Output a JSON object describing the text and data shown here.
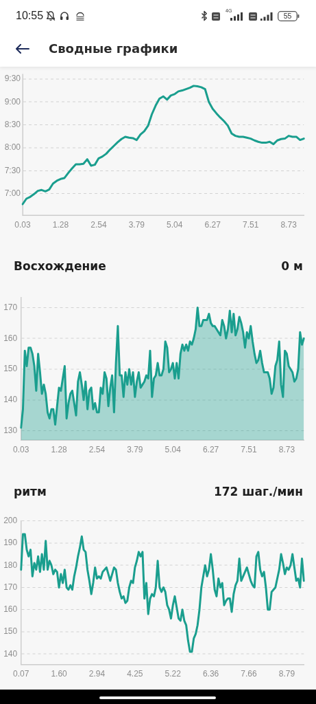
{
  "chart_data": [
    {
      "type": "other",
      "title": "Сводные графики",
      "annotations": [
        "10:55",
        "4G",
        "55"
      ]
    },
    {
      "type": "line",
      "categories": [
        "0.03",
        null,
        null,
        null,
        null,
        null,
        null,
        null,
        null,
        null,
        "1.28",
        null,
        null,
        null,
        null,
        null,
        null,
        null,
        null,
        null,
        "2.54",
        null,
        null,
        null,
        null,
        null,
        null,
        null,
        null,
        null,
        "3.79",
        null,
        null,
        null,
        null,
        null,
        null,
        null,
        null,
        null,
        "5.04",
        null,
        null,
        null,
        null,
        null,
        null,
        null,
        null,
        null,
        "6.27",
        null,
        null,
        null,
        null,
        null,
        null,
        null,
        null,
        null,
        "7.51",
        null,
        null,
        null,
        null,
        null,
        null,
        null,
        null,
        null,
        "8.73",
        null,
        null,
        null,
        null
      ],
      "values": [
        6.77,
        6.89,
        6.93,
        6.99,
        7.06,
        7.08,
        7.05,
        7.09,
        7.22,
        7.28,
        7.32,
        7.34,
        7.45,
        7.55,
        7.64,
        7.64,
        7.65,
        7.75,
        7.61,
        7.63,
        7.77,
        7.81,
        7.87,
        7.96,
        8.04,
        8.12,
        8.19,
        8.24,
        8.22,
        8.21,
        8.17,
        8.29,
        8.36,
        8.48,
        8.73,
        8.92,
        9.07,
        9.12,
        9.05,
        9.14,
        9.17,
        9.23,
        9.25,
        9.28,
        9.31,
        9.35,
        9.34,
        9.32,
        9.28,
        9.0,
        8.85,
        8.75,
        8.66,
        8.58,
        8.48,
        8.31,
        8.26,
        8.24,
        8.24,
        8.22,
        8.2,
        8.16,
        8.13,
        8.11,
        8.11,
        8.13,
        8.08,
        8.16,
        8.19,
        8.2,
        8.26,
        8.24,
        8.24,
        8.17,
        8.2
      ],
      "color": "#1a9e8e",
      "ylim": [
        6.53,
        9.6
      ],
      "yticks": [
        {
          "value": 7,
          "label": "7:00"
        },
        {
          "value": 7.5,
          "label": "7:30"
        },
        {
          "value": 8,
          "label": "8:00"
        },
        {
          "value": 8.5,
          "label": "8:30"
        },
        {
          "value": 9,
          "label": "9:00"
        },
        {
          "value": 9.5,
          "label": "9:30"
        }
      ],
      "grid": "y"
    },
    {
      "type": "area",
      "title": "Восхождение",
      "annotations": [
        "0 м"
      ],
      "categories": [
        "0.03",
        null,
        null,
        null,
        null,
        null,
        null,
        null,
        null,
        null,
        null,
        null,
        null,
        null,
        null,
        null,
        null,
        null,
        null,
        null,
        "1.28",
        null,
        null,
        null,
        null,
        null,
        null,
        null,
        null,
        null,
        null,
        null,
        null,
        null,
        null,
        null,
        null,
        null,
        null,
        null,
        "2.54",
        null,
        null,
        null,
        null,
        null,
        null,
        null,
        null,
        null,
        null,
        null,
        null,
        null,
        null,
        null,
        null,
        null,
        null,
        null,
        "3.79",
        null,
        null,
        null,
        null,
        null,
        null,
        null,
        null,
        null,
        null,
        null,
        null,
        null,
        null,
        null,
        null,
        null,
        null,
        null,
        "5.04",
        null,
        null,
        null,
        null,
        null,
        null,
        null,
        null,
        null,
        null,
        null,
        null,
        null,
        null,
        null,
        null,
        null,
        null,
        null,
        "6.27",
        null,
        null,
        null,
        null,
        null,
        null,
        null,
        null,
        null,
        null,
        null,
        null,
        null,
        null,
        null,
        null,
        null,
        null,
        null,
        "7.51",
        null,
        null,
        null,
        null,
        null,
        null,
        null,
        null,
        null,
        null,
        null,
        null,
        null,
        null,
        null,
        null,
        null,
        null,
        null,
        "8.73",
        null,
        null,
        null,
        null,
        null,
        null,
        null,
        null,
        null
      ],
      "values": [
        131,
        137,
        156,
        151,
        157,
        157,
        155,
        151,
        143,
        155,
        149,
        142,
        145,
        142,
        136,
        134,
        137,
        137,
        132,
        138,
        144,
        143,
        147,
        151,
        134,
        139,
        142,
        143,
        139,
        135,
        146,
        149,
        145,
        140,
        146,
        137,
        143,
        144,
        137,
        139,
        136,
        136,
        144,
        142,
        149,
        147,
        138,
        144,
        148,
        136,
        152,
        164,
        148,
        148,
        141,
        149,
        145,
        150,
        145,
        149,
        141,
        146,
        149,
        144,
        145,
        146,
        148,
        147,
        156,
        141,
        147,
        148,
        152,
        148,
        148,
        150,
        159,
        157,
        149,
        150,
        152,
        147,
        152,
        147,
        155,
        158,
        156,
        158,
        156,
        159,
        158,
        160,
        163,
        170,
        164,
        164,
        166,
        166,
        166,
        168,
        165,
        164,
        164,
        163,
        162,
        161,
        166,
        164,
        160,
        163,
        169,
        162,
        168,
        161,
        163,
        167,
        165,
        162,
        157,
        162,
        160,
        164,
        159,
        155,
        152,
        153,
        156,
        152,
        149,
        149,
        149,
        147,
        142,
        144,
        151,
        153,
        159,
        145,
        141,
        156,
        155,
        151,
        150,
        149,
        146,
        147,
        150,
        162,
        158,
        160
      ],
      "color": "#1a9e8e",
      "ylim": [
        127,
        173.3
      ],
      "yticks": [
        130,
        140,
        150,
        160,
        170
      ],
      "grid": "y"
    },
    {
      "type": "line",
      "title": "ритм",
      "annotations": [
        "172 шаг./мин"
      ],
      "categories": [
        "0.07",
        null,
        null,
        null,
        null,
        null,
        null,
        null,
        null,
        null,
        null,
        null,
        null,
        null,
        null,
        null,
        null,
        null,
        null,
        null,
        "1.60",
        null,
        null,
        null,
        null,
        null,
        null,
        null,
        null,
        null,
        null,
        null,
        null,
        null,
        null,
        null,
        null,
        null,
        null,
        null,
        "2.94",
        null,
        null,
        null,
        null,
        null,
        null,
        null,
        null,
        null,
        null,
        null,
        null,
        null,
        null,
        null,
        null,
        null,
        null,
        null,
        "4.25",
        null,
        null,
        null,
        null,
        null,
        null,
        null,
        null,
        null,
        null,
        null,
        null,
        null,
        null,
        null,
        null,
        null,
        null,
        null,
        "5.22",
        null,
        null,
        null,
        null,
        null,
        null,
        null,
        null,
        null,
        null,
        null,
        null,
        null,
        null,
        null,
        null,
        null,
        null,
        null,
        "6.36",
        null,
        null,
        null,
        null,
        null,
        null,
        null,
        null,
        null,
        null,
        null,
        null,
        null,
        null,
        null,
        null,
        null,
        null,
        null,
        "7.66",
        null,
        null,
        null,
        null,
        null,
        null,
        null,
        null,
        null,
        null,
        null,
        null,
        null,
        null,
        null,
        null,
        null,
        null,
        null,
        "8.79",
        null,
        null,
        null,
        null,
        null,
        null,
        null,
        null,
        null
      ],
      "values": [
        178,
        194,
        194,
        187,
        184,
        187,
        175,
        181,
        178,
        184,
        177,
        185,
        178,
        191,
        178,
        182,
        180,
        176,
        178,
        177,
        170,
        176,
        172,
        178,
        170,
        169,
        171,
        169,
        175,
        179,
        184,
        188,
        193,
        187,
        186,
        178,
        173,
        167,
        172,
        179,
        174,
        175,
        174,
        177,
        178,
        179,
        176,
        173,
        176,
        179,
        178,
        172,
        168,
        165,
        166,
        163,
        164,
        170,
        173,
        172,
        179,
        182,
        186,
        184,
        186,
        165,
        172,
        158,
        165,
        167,
        166,
        170,
        182,
        170,
        168,
        170,
        168,
        162,
        160,
        156,
        162,
        166,
        161,
        156,
        155,
        160,
        155,
        153,
        146,
        141,
        141,
        147,
        149,
        153,
        160,
        170,
        175,
        180,
        175,
        178,
        185,
        178,
        169,
        166,
        174,
        170,
        172,
        162,
        164,
        165,
        165,
        159,
        167,
        171,
        173,
        183,
        173,
        175,
        177,
        179,
        176,
        173,
        171,
        170,
        184,
        186,
        178,
        175,
        177,
        170,
        160,
        160,
        168,
        169,
        170,
        174,
        178,
        185,
        181,
        176,
        179,
        178,
        180,
        185,
        179,
        173,
        174,
        170,
        183,
        173
      ],
      "color": "#1a9e8e",
      "ylim": [
        135.2,
        200
      ],
      "yticks": [
        140,
        150,
        160,
        170,
        180,
        190,
        200
      ],
      "grid": "y"
    }
  ]
}
